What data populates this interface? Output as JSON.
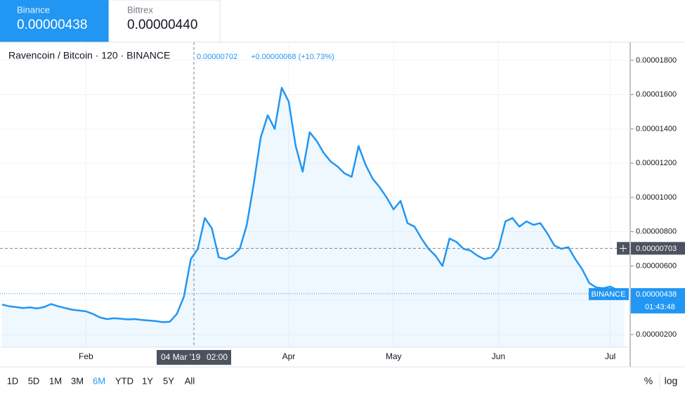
{
  "exchanges": [
    {
      "name": "Binance",
      "price": "0.00000438"
    },
    {
      "name": "Bittrex",
      "price": "0.00000440"
    }
  ],
  "chart_data": {
    "type": "area",
    "title": "Ravencoin / Bitcoin · 120 · BINANCE",
    "legend_price": "0.00000702",
    "legend_change": "+0.00000068 (+10.73%)",
    "categories": [
      null,
      null,
      null,
      null,
      null,
      null,
      null,
      null,
      null,
      null,
      null,
      null,
      "Feb",
      null,
      null,
      null,
      null,
      null,
      null,
      null,
      null,
      null,
      null,
      null,
      null,
      null,
      null,
      null,
      null,
      null,
      null,
      null,
      null,
      null,
      null,
      null,
      null,
      null,
      null,
      null,
      null,
      "Apr",
      null,
      null,
      null,
      null,
      null,
      null,
      null,
      null,
      null,
      null,
      null,
      null,
      null,
      null,
      "May",
      null,
      null,
      null,
      null,
      null,
      null,
      null,
      null,
      null,
      null,
      null,
      null,
      null,
      null,
      "Jun",
      null,
      null,
      null,
      null,
      null,
      null,
      null,
      null,
      null,
      null,
      null,
      null,
      null,
      null,
      null,
      "Jul",
      null,
      null
    ],
    "values": [
      3.75e-06,
      3.65e-06,
      3.6e-06,
      3.55e-06,
      3.58e-06,
      3.52e-06,
      3.6e-06,
      3.78e-06,
      3.65e-06,
      3.55e-06,
      3.45e-06,
      3.4e-06,
      3.35e-06,
      3.2e-06,
      3e-06,
      2.9e-06,
      2.95e-06,
      2.92e-06,
      2.88e-06,
      2.9e-06,
      2.85e-06,
      2.82e-06,
      2.78e-06,
      2.72e-06,
      2.75e-06,
      3.2e-06,
      4.2e-06,
      6.4e-06,
      7e-06,
      8.8e-06,
      8.2e-06,
      6.5e-06,
      6.4e-06,
      6.6e-06,
      7e-06,
      8.4e-06,
      1.08e-05,
      1.35e-05,
      1.48e-05,
      1.4e-05,
      1.64e-05,
      1.56e-05,
      1.3e-05,
      1.15e-05,
      1.38e-05,
      1.33e-05,
      1.26e-05,
      1.21e-05,
      1.18e-05,
      1.14e-05,
      1.12e-05,
      1.3e-05,
      1.19e-05,
      1.11e-05,
      1.06e-05,
      1e-05,
      9.3e-06,
      9.8e-06,
      8.5e-06,
      8.3e-06,
      7.6e-06,
      7e-06,
      6.6e-06,
      6e-06,
      7.6e-06,
      7.4e-06,
      7e-06,
      6.9e-06,
      6.6e-06,
      6.4e-06,
      6.5e-06,
      7e-06,
      8.6e-06,
      8.8e-06,
      8.3e-06,
      8.6e-06,
      8.4e-06,
      8.5e-06,
      7.9e-06,
      7.2e-06,
      7e-06,
      7.1e-06,
      6.4e-06,
      5.8e-06,
      5e-06,
      4.75e-06,
      4.7e-06,
      4.8e-06,
      4.6e-06,
      4.38e-06
    ],
    "color": "#2196f3",
    "ylim": [
      1.26e-06,
      1.906e-05
    ],
    "yticks": [
      {
        "value": 2e-06,
        "label": "0.00000200"
      },
      {
        "value": 4e-06,
        "label": "0.00000400"
      },
      {
        "value": 6e-06,
        "label": "0.00000600"
      },
      {
        "value": 8e-06,
        "label": "0.00000800"
      },
      {
        "value": 1e-05,
        "label": "0.00001000"
      },
      {
        "value": 1.2e-05,
        "label": "0.00001200"
      },
      {
        "value": 1.4e-05,
        "label": "0.00001400"
      },
      {
        "value": 1.6e-05,
        "label": "0.00001600"
      },
      {
        "value": 1.8e-05,
        "label": "0.00001800"
      }
    ],
    "grid": true,
    "last_price": {
      "exchange": "BINANCE",
      "label": "0.00000438",
      "countdown": "01:43:48"
    },
    "crosshair": {
      "time": "04 Mar '19",
      "hour": "02:00",
      "price": "0.00000703"
    }
  },
  "toolbar": {
    "ranges": [
      "1D",
      "5D",
      "1M",
      "3M",
      "6M",
      "YTD",
      "1Y",
      "5Y",
      "All"
    ],
    "active": "6M",
    "options": [
      "%",
      "log"
    ]
  }
}
